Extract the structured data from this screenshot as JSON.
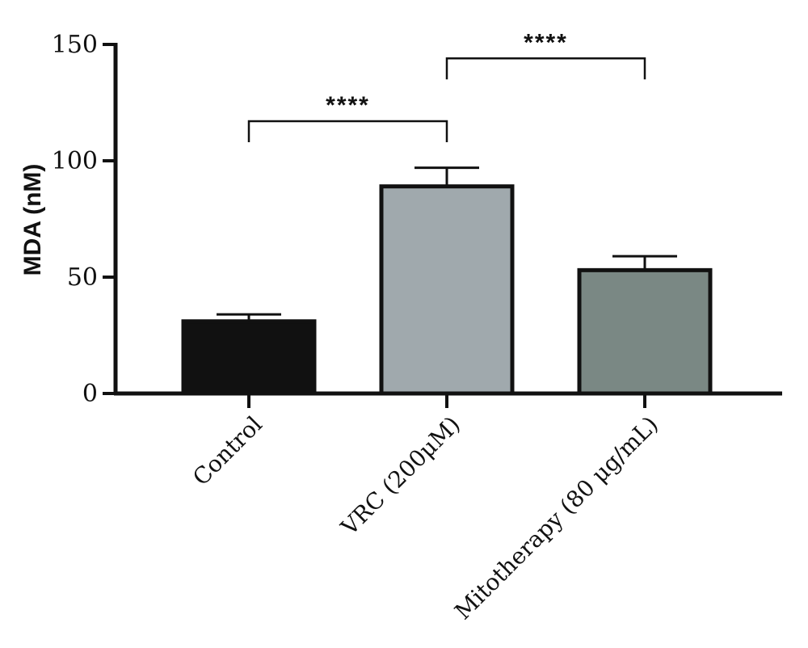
{
  "chart_data": {
    "type": "bar",
    "ylabel": "MDA (nM)",
    "xlabel": "",
    "ylim": [
      0,
      150
    ],
    "yticks": [
      0,
      50,
      100,
      150
    ],
    "categories": [
      "Control",
      "VRC (200μM)",
      "Mitotherapy (80 μg/mL)"
    ],
    "values": [
      31,
      89,
      53
    ],
    "errors": [
      3,
      8,
      6
    ],
    "colors": [
      "#111111",
      "#a0a9ad",
      "#7a8884"
    ],
    "significance": [
      {
        "from": 0,
        "to": 1,
        "label": "****",
        "y": 117
      },
      {
        "from": 1,
        "to": 2,
        "label": "****",
        "y": 144
      }
    ]
  }
}
